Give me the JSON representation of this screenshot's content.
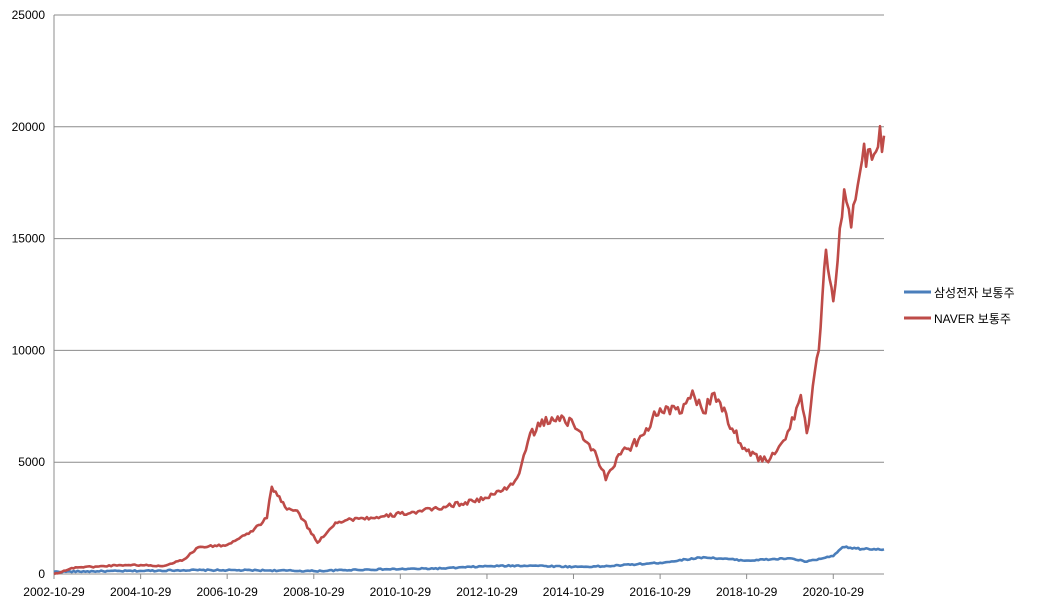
{
  "chart_data": {
    "type": "line",
    "title": "",
    "xlabel": "",
    "ylabel": "",
    "ylim": [
      0,
      25000
    ],
    "y_ticks": [
      0,
      5000,
      10000,
      15000,
      20000,
      25000
    ],
    "x_range": [
      "2002-10-29",
      "2021-12-31"
    ],
    "x_ticks": [
      "2002-10-29",
      "2004-10-29",
      "2006-10-29",
      "2008-10-29",
      "2010-10-29",
      "2012-10-29",
      "2014-10-29",
      "2016-10-29",
      "2018-10-29",
      "2020-10-29"
    ],
    "grid": "horizontal",
    "legend_position": "right",
    "series": [
      {
        "name": "삼성전자 보통주",
        "color": "#4a7ebb",
        "points": [
          [
            "2002-10-29",
            100
          ],
          [
            "2003-10-29",
            120
          ],
          [
            "2004-10-29",
            140
          ],
          [
            "2005-10-29",
            170
          ],
          [
            "2006-10-29",
            170
          ],
          [
            "2007-10-29",
            160
          ],
          [
            "2008-10-29",
            130
          ],
          [
            "2009-10-29",
            190
          ],
          [
            "2010-10-29",
            220
          ],
          [
            "2011-10-29",
            250
          ],
          [
            "2012-10-29",
            350
          ],
          [
            "2013-10-29",
            380
          ],
          [
            "2014-10-29",
            320
          ],
          [
            "2015-06-29",
            340
          ],
          [
            "2016-10-29",
            500
          ],
          [
            "2017-10-29",
            750
          ],
          [
            "2018-10-29",
            600
          ],
          [
            "2019-10-29",
            700
          ],
          [
            "2020-03-20",
            550
          ],
          [
            "2020-10-29",
            800
          ],
          [
            "2021-01-15",
            1200
          ],
          [
            "2021-06-29",
            1120
          ],
          [
            "2021-12-31",
            1100
          ]
        ]
      },
      {
        "name": "NAVER 보통주",
        "color": "#be4b48",
        "points": [
          [
            "2002-10-29",
            0
          ],
          [
            "2003-04-29",
            300
          ],
          [
            "2003-10-29",
            330
          ],
          [
            "2004-04-29",
            400
          ],
          [
            "2004-10-29",
            400
          ],
          [
            "2005-04-29",
            350
          ],
          [
            "2005-10-29",
            650
          ],
          [
            "2006-02-28",
            1200
          ],
          [
            "2006-10-29",
            1300
          ],
          [
            "2007-04-29",
            1800
          ],
          [
            "2007-09-29",
            2500
          ],
          [
            "2007-11-10",
            3900
          ],
          [
            "2008-02-29",
            3000
          ],
          [
            "2008-06-29",
            2700
          ],
          [
            "2008-11-29",
            1400
          ],
          [
            "2009-04-29",
            2300
          ],
          [
            "2009-10-29",
            2500
          ],
          [
            "2010-04-29",
            2500
          ],
          [
            "2010-10-29",
            2700
          ],
          [
            "2011-04-29",
            2800
          ],
          [
            "2011-10-29",
            3000
          ],
          [
            "2012-04-29",
            3200
          ],
          [
            "2012-10-29",
            3400
          ],
          [
            "2013-04-29",
            3900
          ],
          [
            "2013-07-29",
            4500
          ],
          [
            "2013-10-29",
            6300
          ],
          [
            "2014-04-29",
            7000
          ],
          [
            "2014-10-29",
            6700
          ],
          [
            "2015-04-29",
            5500
          ],
          [
            "2015-07-29",
            4200
          ],
          [
            "2015-10-29",
            5200
          ],
          [
            "2016-04-29",
            6000
          ],
          [
            "2016-10-29",
            7400
          ],
          [
            "2017-04-29",
            7200
          ],
          [
            "2017-07-29",
            8200
          ],
          [
            "2017-10-29",
            7200
          ],
          [
            "2018-01-29",
            8100
          ],
          [
            "2018-06-29",
            6500
          ],
          [
            "2018-10-29",
            5500
          ],
          [
            "2019-04-29",
            5000
          ],
          [
            "2019-07-29",
            5700
          ],
          [
            "2019-10-29",
            6500
          ],
          [
            "2020-01-29",
            8000
          ],
          [
            "2020-03-20",
            6300
          ],
          [
            "2020-06-29",
            10000
          ],
          [
            "2020-08-29",
            14500
          ],
          [
            "2020-10-29",
            12200
          ],
          [
            "2021-01-29",
            17200
          ],
          [
            "2021-03-29",
            15500
          ],
          [
            "2021-06-29",
            18500
          ],
          [
            "2021-12-31",
            19600
          ]
        ]
      }
    ]
  }
}
